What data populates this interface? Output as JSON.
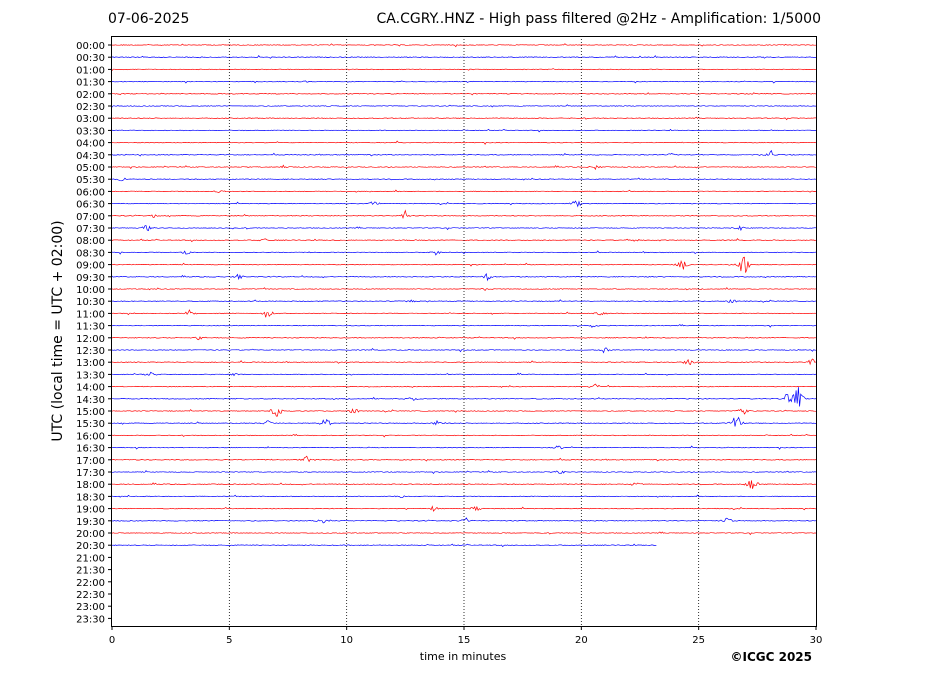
{
  "header": {
    "date": "07-06-2025",
    "title": "CA.CGRY..HNZ - High pass filtered @2Hz - Amplification: 1/5000"
  },
  "footer": {
    "credit": "©ICGC 2025"
  },
  "chart_data": {
    "type": "line",
    "title": "CA.CGRY..HNZ - High pass filtered @2Hz - Amplification: 1/5000",
    "xlabel": "time in minutes",
    "ylabel": "UTC (local time = UTC + 02:00)",
    "xlim": [
      0,
      30
    ],
    "x_ticks": [
      0,
      5,
      10,
      15,
      20,
      25,
      30
    ],
    "x_grid_minutes": [
      5,
      10,
      15,
      20,
      25
    ],
    "row_labels": [
      "00:00",
      "00:30",
      "01:00",
      "01:30",
      "02:00",
      "02:30",
      "03:00",
      "03:30",
      "04:00",
      "04:30",
      "05:00",
      "05:30",
      "06:00",
      "06:30",
      "07:00",
      "07:30",
      "08:00",
      "08:30",
      "09:00",
      "09:30",
      "10:00",
      "10:30",
      "11:00",
      "11:30",
      "12:00",
      "12:30",
      "13:00",
      "13:30",
      "14:00",
      "14:30",
      "15:00",
      "15:30",
      "16:00",
      "16:30",
      "17:00",
      "17:30",
      "18:00",
      "18:30",
      "19:00",
      "19:30",
      "20:00",
      "20:30",
      "21:00",
      "21:30",
      "22:00",
      "22:30",
      "23:00",
      "23:30"
    ],
    "trace_colors": [
      "#ff0000",
      "#0000ff"
    ],
    "traces_recorded": 42,
    "last_trace_end_minute": 23.2,
    "events": [
      {
        "row": 3,
        "minute": 8.2,
        "amp": 2
      },
      {
        "row": 9,
        "minute": 28.1,
        "amp": 6
      },
      {
        "row": 9,
        "minute": 23.8,
        "amp": 2
      },
      {
        "row": 10,
        "minute": 7.3,
        "amp": 3
      },
      {
        "row": 10,
        "minute": 20.6,
        "amp": 3
      },
      {
        "row": 11,
        "minute": 0.4,
        "amp": 3
      },
      {
        "row": 12,
        "minute": 4.5,
        "amp": 2
      },
      {
        "row": 13,
        "minute": 11.2,
        "amp": 4
      },
      {
        "row": 13,
        "minute": 19.8,
        "amp": 6
      },
      {
        "row": 14,
        "minute": 12.5,
        "amp": 5
      },
      {
        "row": 14,
        "minute": 1.8,
        "amp": 2
      },
      {
        "row": 15,
        "minute": 1.5,
        "amp": 4
      },
      {
        "row": 15,
        "minute": 26.7,
        "amp": 3
      },
      {
        "row": 16,
        "minute": 6.5,
        "amp": 3
      },
      {
        "row": 16,
        "minute": 22.3,
        "amp": 3
      },
      {
        "row": 17,
        "minute": 3.2,
        "amp": 3
      },
      {
        "row": 17,
        "minute": 13.8,
        "amp": 3
      },
      {
        "row": 18,
        "minute": 24.3,
        "amp": 7
      },
      {
        "row": 18,
        "minute": 26.9,
        "amp": 18
      },
      {
        "row": 19,
        "minute": 16.0,
        "amp": 4
      },
      {
        "row": 19,
        "minute": 5.4,
        "amp": 3
      },
      {
        "row": 20,
        "minute": 15.9,
        "amp": 2
      },
      {
        "row": 21,
        "minute": 26.4,
        "amp": 3
      },
      {
        "row": 21,
        "minute": 12.8,
        "amp": 2
      },
      {
        "row": 22,
        "minute": 3.3,
        "amp": 4
      },
      {
        "row": 22,
        "minute": 6.6,
        "amp": 6
      },
      {
        "row": 22,
        "minute": 20.8,
        "amp": 3
      },
      {
        "row": 23,
        "minute": 20.5,
        "amp": 3
      },
      {
        "row": 24,
        "minute": 3.7,
        "amp": 3
      },
      {
        "row": 25,
        "minute": 21.0,
        "amp": 4
      },
      {
        "row": 26,
        "minute": 29.8,
        "amp": 5
      },
      {
        "row": 26,
        "minute": 24.6,
        "amp": 4
      },
      {
        "row": 27,
        "minute": 1.6,
        "amp": 3
      },
      {
        "row": 27,
        "minute": 5.2,
        "amp": 2
      },
      {
        "row": 28,
        "minute": 20.6,
        "amp": 3
      },
      {
        "row": 29,
        "minute": 28.8,
        "amp": 8
      },
      {
        "row": 29,
        "minute": 29.2,
        "amp": 18
      },
      {
        "row": 29,
        "minute": 12.8,
        "amp": 3
      },
      {
        "row": 30,
        "minute": 7.0,
        "amp": 10
      },
      {
        "row": 30,
        "minute": 10.3,
        "amp": 4
      },
      {
        "row": 30,
        "minute": 26.9,
        "amp": 5
      },
      {
        "row": 31,
        "minute": 9.1,
        "amp": 7
      },
      {
        "row": 31,
        "minute": 26.6,
        "amp": 12
      },
      {
        "row": 31,
        "minute": 6.6,
        "amp": 4
      },
      {
        "row": 31,
        "minute": 13.9,
        "amp": 4
      },
      {
        "row": 33,
        "minute": 19.0,
        "amp": 3
      },
      {
        "row": 34,
        "minute": 8.3,
        "amp": 4
      },
      {
        "row": 35,
        "minute": 19.1,
        "amp": 3
      },
      {
        "row": 36,
        "minute": 22.3,
        "amp": 3
      },
      {
        "row": 36,
        "minute": 27.3,
        "amp": 9
      },
      {
        "row": 37,
        "minute": 12.3,
        "amp": 3
      },
      {
        "row": 38,
        "minute": 13.7,
        "amp": 3
      },
      {
        "row": 38,
        "minute": 15.5,
        "amp": 3
      },
      {
        "row": 39,
        "minute": 9.0,
        "amp": 4
      },
      {
        "row": 39,
        "minute": 26.2,
        "amp": 4
      },
      {
        "row": 39,
        "minute": 15.1,
        "amp": 3
      }
    ]
  }
}
